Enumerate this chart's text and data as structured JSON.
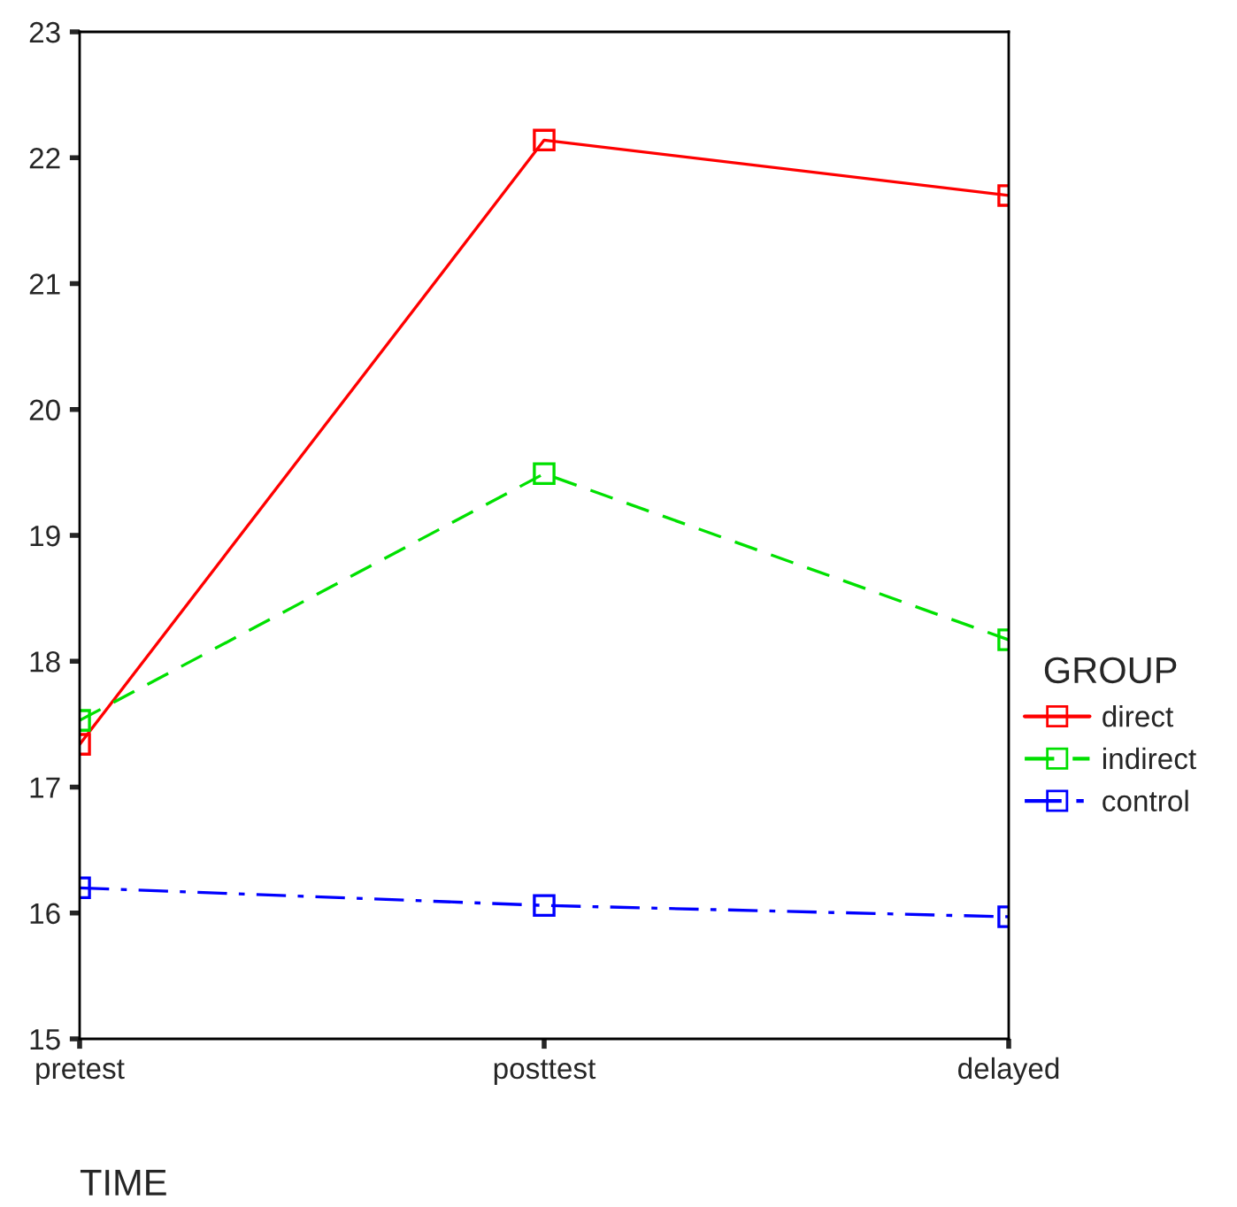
{
  "chart_data": {
    "type": "line",
    "xlabel": "TIME",
    "legend_title": "GROUP",
    "legend": "right",
    "categories": [
      "pretest",
      "posttest",
      "delayed"
    ],
    "ylim": [
      15,
      23
    ],
    "yticks": [
      15,
      16,
      17,
      18,
      19,
      20,
      21,
      22,
      23
    ],
    "grid": false,
    "marker": "square",
    "series": [
      {
        "name": "direct",
        "color": "#ff0000",
        "line_style": "solid",
        "values": [
          17.34,
          22.14,
          21.7
        ]
      },
      {
        "name": "indirect",
        "color": "#00e000",
        "line_style": "dashed",
        "values": [
          17.53,
          19.49,
          18.17
        ]
      },
      {
        "name": "control",
        "color": "#0000ff",
        "line_style": "dashdot",
        "values": [
          16.2,
          16.06,
          15.97
        ]
      }
    ]
  }
}
